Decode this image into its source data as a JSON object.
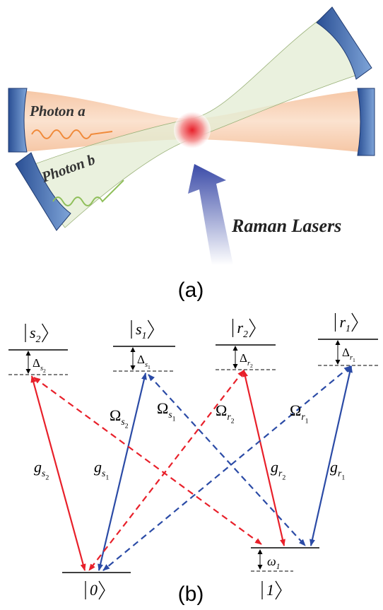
{
  "panel_a": {
    "photon_a": "Photon a",
    "photon_b": "Photon b",
    "lasers": "Raman Lasers",
    "caption": "(a)"
  },
  "panel_b": {
    "caption": "(b)",
    "levels": [
      {
        "label": {
          "text": "s",
          "sub": "2"
        },
        "delta": {
          "text": "Δ",
          "sub": "s",
          "subsub": "2"
        }
      },
      {
        "label": {
          "text": "s",
          "sub": "1"
        },
        "delta": {
          "text": "Δ",
          "sub": "s",
          "subsub": "1"
        }
      },
      {
        "label": {
          "text": "r",
          "sub": "2"
        },
        "delta": {
          "text": "Δ",
          "sub": "r",
          "subsub": "2"
        }
      },
      {
        "label": {
          "text": "r",
          "sub": "1"
        },
        "delta": {
          "text": "Δ",
          "sub": "r",
          "subsub": "1"
        }
      },
      {
        "label": {
          "text": "0"
        }
      },
      {
        "label": {
          "text": "1"
        },
        "delta": {
          "text": "ω",
          "sub": "1"
        }
      }
    ],
    "transitions": [
      {
        "label": {
          "text": "g",
          "sub": "s",
          "subsub": "2"
        }
      },
      {
        "label": {
          "text": "g",
          "sub": "s",
          "subsub": "1"
        }
      },
      {
        "label": {
          "text": "Ω",
          "sub": "s",
          "subsub": "2"
        }
      },
      {
        "label": {
          "text": "Ω",
          "sub": "s",
          "subsub": "1"
        }
      },
      {
        "label": {
          "text": "Ω",
          "sub": "r",
          "subsub": "2"
        }
      },
      {
        "label": {
          "text": "g",
          "sub": "r",
          "subsub": "2"
        }
      },
      {
        "label": {
          "text": "Ω",
          "sub": "r",
          "subsub": "1"
        }
      },
      {
        "label": {
          "text": "g",
          "sub": "r",
          "subsub": "1"
        }
      }
    ]
  }
}
